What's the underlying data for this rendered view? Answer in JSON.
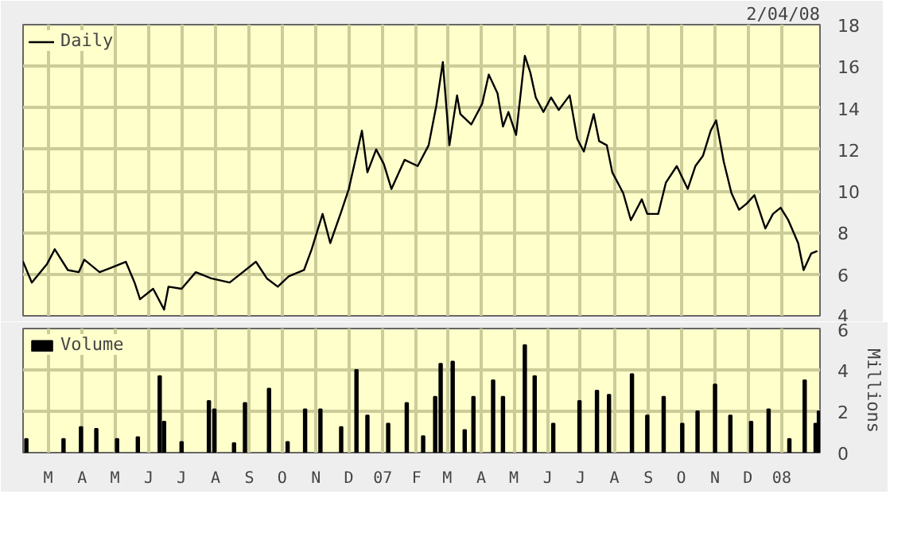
{
  "chart_data": [
    {
      "type": "line",
      "annotations": [
        "2/04/08"
      ],
      "legend": "top left",
      "grid": true,
      "tick_labels": "y",
      "xlim": [
        "2006-02-06",
        "2008-02-05"
      ],
      "xticks": [
        {
          "value": "2006-03-01",
          "label": null
        },
        {
          "value": "2006-04-01",
          "label": null
        },
        {
          "value": "2006-05-01",
          "label": null
        },
        {
          "value": "2006-06-01",
          "label": null
        },
        {
          "value": "2006-07-01",
          "label": null
        },
        {
          "value": "2006-08-01",
          "label": null
        },
        {
          "value": "2006-09-01",
          "label": null
        },
        {
          "value": "2006-10-01",
          "label": null
        },
        {
          "value": "2006-11-01",
          "label": null
        },
        {
          "value": "2006-12-01",
          "label": null
        },
        {
          "value": "2007-01-01",
          "label": null
        },
        {
          "value": "2007-02-01",
          "label": null
        },
        {
          "value": "2007-03-01",
          "label": null
        },
        {
          "value": "2007-04-01",
          "label": null
        },
        {
          "value": "2007-05-01",
          "label": null
        },
        {
          "value": "2007-06-01",
          "label": null
        },
        {
          "value": "2007-07-01",
          "label": null
        },
        {
          "value": "2007-08-01",
          "label": null
        },
        {
          "value": "2007-09-01",
          "label": null
        },
        {
          "value": "2007-10-01",
          "label": null
        },
        {
          "value": "2007-11-01",
          "label": null
        },
        {
          "value": "2007-12-01",
          "label": null
        },
        {
          "value": "2008-01-01",
          "label": null
        }
      ],
      "ylim": [
        4,
        18
      ],
      "yticks": [
        4,
        6,
        8,
        10,
        12,
        14,
        16,
        18
      ],
      "x": [
        "2006-02-06",
        "2006-02-14",
        "2006-02-28",
        "2006-03-07",
        "2006-03-19",
        "2006-03-29",
        "2006-04-03",
        "2006-04-17",
        "2006-04-27",
        "2006-05-11",
        "2006-05-19",
        "2006-05-24",
        "2006-06-05",
        "2006-06-15",
        "2006-06-19",
        "2006-07-01",
        "2006-07-14",
        "2006-07-28",
        "2006-08-14",
        "2006-08-26",
        "2006-09-07",
        "2006-09-17",
        "2006-09-27",
        "2006-10-07",
        "2006-10-21",
        "2006-10-28",
        "2006-11-07",
        "2006-11-14",
        "2006-11-24",
        "2006-12-01",
        "2006-12-13",
        "2006-12-18",
        "2006-12-26",
        "2007-01-02",
        "2007-01-09",
        "2007-01-21",
        "2007-02-02",
        "2007-02-12",
        "2007-02-19",
        "2007-02-25",
        "2007-03-03",
        "2007-03-10",
        "2007-03-13",
        "2007-03-23",
        "2007-04-02",
        "2007-04-08",
        "2007-04-16",
        "2007-04-21",
        "2007-04-26",
        "2007-05-03",
        "2007-05-11",
        "2007-05-16",
        "2007-05-21",
        "2007-05-28",
        "2007-06-04",
        "2007-06-11",
        "2007-06-21",
        "2007-06-28",
        "2007-07-04",
        "2007-07-13",
        "2007-07-18",
        "2007-07-25",
        "2007-07-30",
        "2007-08-09",
        "2007-08-16",
        "2007-08-26",
        "2007-08-31",
        "2007-09-10",
        "2007-09-17",
        "2007-09-27",
        "2007-10-07",
        "2007-10-14",
        "2007-10-21",
        "2007-10-28",
        "2007-11-02",
        "2007-11-09",
        "2007-11-16",
        "2007-11-23",
        "2007-11-30",
        "2007-12-07",
        "2007-12-17",
        "2007-12-24",
        "2007-12-31",
        "2008-01-07",
        "2008-01-16",
        "2008-01-21",
        "2008-01-28",
        "2008-02-02"
      ],
      "series": [
        {
          "name": "Daily",
          "color": "#000000",
          "values": [
            6.6,
            5.6,
            6.5,
            7.2,
            6.2,
            6.1,
            6.7,
            6.1,
            6.3,
            6.6,
            5.6,
            4.8,
            5.3,
            4.3,
            5.4,
            5.3,
            6.1,
            5.8,
            5.6,
            6.1,
            6.6,
            5.8,
            5.4,
            5.9,
            6.2,
            7.2,
            8.9,
            7.5,
            9.0,
            10.1,
            12.9,
            10.9,
            12.0,
            11.3,
            10.1,
            11.5,
            11.2,
            12.2,
            14.1,
            16.2,
            12.2,
            14.6,
            13.7,
            13.2,
            14.2,
            15.6,
            14.7,
            13.1,
            13.8,
            12.7,
            16.5,
            15.7,
            14.5,
            13.8,
            14.5,
            13.9,
            14.6,
            12.5,
            11.9,
            13.7,
            12.4,
            12.2,
            10.9,
            9.9,
            8.6,
            9.6,
            8.9,
            8.9,
            10.4,
            11.2,
            10.1,
            11.2,
            11.7,
            12.9,
            13.4,
            11.4,
            9.9,
            9.1,
            9.4,
            9.8,
            8.2,
            8.9,
            9.2,
            8.6,
            7.5,
            6.2,
            7.0,
            7.1
          ]
        }
      ]
    },
    {
      "type": "bar",
      "legend": "top left",
      "grid": true,
      "ylabel": "Millions",
      "xlim": [
        "2006-02-06",
        "2008-02-05"
      ],
      "xticks": [
        {
          "value": "2006-03-01",
          "label": "M"
        },
        {
          "value": "2006-04-01",
          "label": "A"
        },
        {
          "value": "2006-05-01",
          "label": "M"
        },
        {
          "value": "2006-06-01",
          "label": "J"
        },
        {
          "value": "2006-07-01",
          "label": "J"
        },
        {
          "value": "2006-08-01",
          "label": "A"
        },
        {
          "value": "2006-09-01",
          "label": "S"
        },
        {
          "value": "2006-10-01",
          "label": "O"
        },
        {
          "value": "2006-11-01",
          "label": "N"
        },
        {
          "value": "2006-12-01",
          "label": "D"
        },
        {
          "value": "2007-01-01",
          "label": "07"
        },
        {
          "value": "2007-02-01",
          "label": "F"
        },
        {
          "value": "2007-03-01",
          "label": "M"
        },
        {
          "value": "2007-04-01",
          "label": "A"
        },
        {
          "value": "2007-05-01",
          "label": "M"
        },
        {
          "value": "2007-06-01",
          "label": "J"
        },
        {
          "value": "2007-07-01",
          "label": "J"
        },
        {
          "value": "2007-08-01",
          "label": "A"
        },
        {
          "value": "2007-09-01",
          "label": "S"
        },
        {
          "value": "2007-10-01",
          "label": "O"
        },
        {
          "value": "2007-11-01",
          "label": "N"
        },
        {
          "value": "2007-12-01",
          "label": "D"
        },
        {
          "value": "2008-01-01",
          "label": "08"
        }
      ],
      "ylim": [
        0,
        6
      ],
      "yticks": [
        0,
        2,
        4,
        6
      ],
      "x": [
        "2006-02-09",
        "2006-03-15",
        "2006-03-31",
        "2006-04-14",
        "2006-05-03",
        "2006-05-22",
        "2006-06-11",
        "2006-06-15",
        "2006-07-01",
        "2006-07-26",
        "2006-07-31",
        "2006-08-18",
        "2006-08-28",
        "2006-09-19",
        "2006-10-06",
        "2006-10-22",
        "2006-11-05",
        "2006-11-24",
        "2006-12-08",
        "2006-12-18",
        "2007-01-06",
        "2007-01-23",
        "2007-02-07",
        "2007-02-18",
        "2007-02-23",
        "2007-03-06",
        "2007-03-17",
        "2007-03-25",
        "2007-04-12",
        "2007-04-21",
        "2007-05-11",
        "2007-05-20",
        "2007-06-06",
        "2007-06-30",
        "2007-07-16",
        "2007-07-27",
        "2007-08-17",
        "2007-08-31",
        "2007-09-15",
        "2007-10-02",
        "2007-10-16",
        "2007-11-01",
        "2007-11-15",
        "2007-12-04",
        "2007-12-20",
        "2008-01-08",
        "2008-01-22",
        "2008-02-01",
        "2008-02-04"
      ],
      "series": [
        {
          "name": "Volume",
          "color": "#000000",
          "values": [
            0.66,
            0.66,
            1.24,
            1.15,
            0.66,
            0.75,
            3.7,
            1.5,
            0.52,
            2.5,
            2.1,
            0.46,
            2.4,
            3.1,
            0.52,
            2.1,
            2.1,
            1.24,
            4.0,
            1.8,
            1.4,
            2.4,
            0.8,
            2.7,
            4.3,
            4.4,
            1.1,
            2.7,
            3.5,
            2.7,
            5.2,
            3.7,
            1.4,
            2.5,
            3.0,
            2.8,
            3.8,
            1.8,
            2.7,
            1.4,
            2.0,
            3.3,
            1.8,
            1.5,
            2.1,
            0.66,
            3.5,
            1.4,
            2.0
          ]
        }
      ]
    }
  ]
}
